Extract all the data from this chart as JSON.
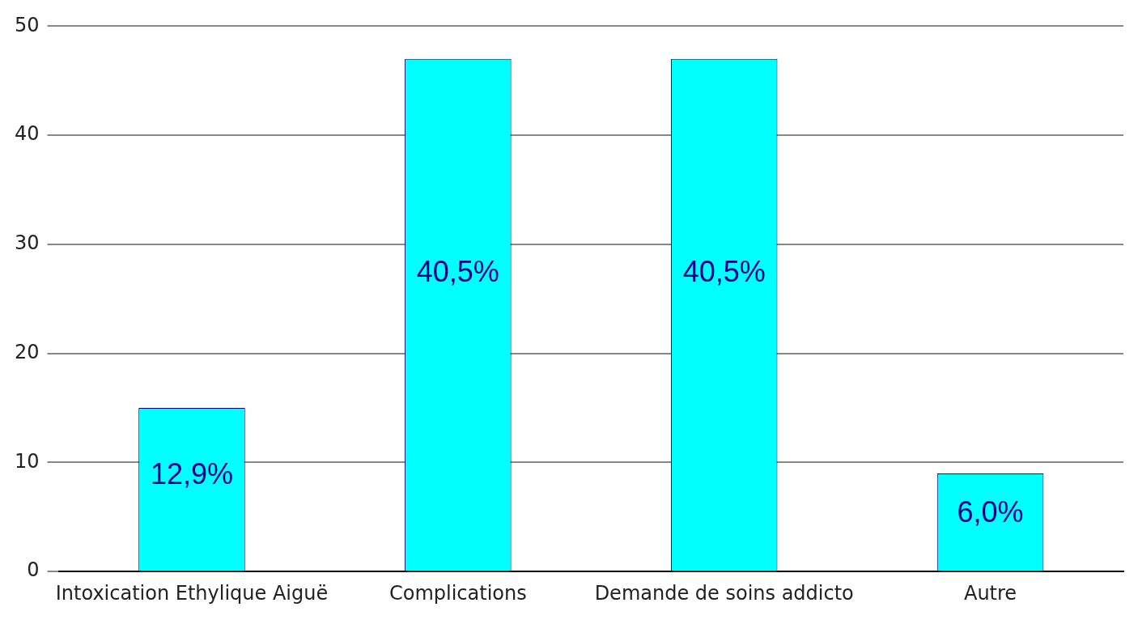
{
  "chart_data": {
    "type": "bar",
    "categories": [
      "Intoxication Ethylique Aiguë",
      "Complications",
      "Demande de soins addicto",
      "Autre"
    ],
    "values": [
      15,
      47,
      47,
      9
    ],
    "color": "#00ffff",
    "annotations": [
      "12,9%",
      "40,5%",
      "40,5%",
      "6,0%"
    ],
    "ylim": [
      0,
      50
    ],
    "yticks": [
      0,
      10,
      20,
      30,
      40,
      50
    ],
    "grid": "y",
    "legend": false
  }
}
